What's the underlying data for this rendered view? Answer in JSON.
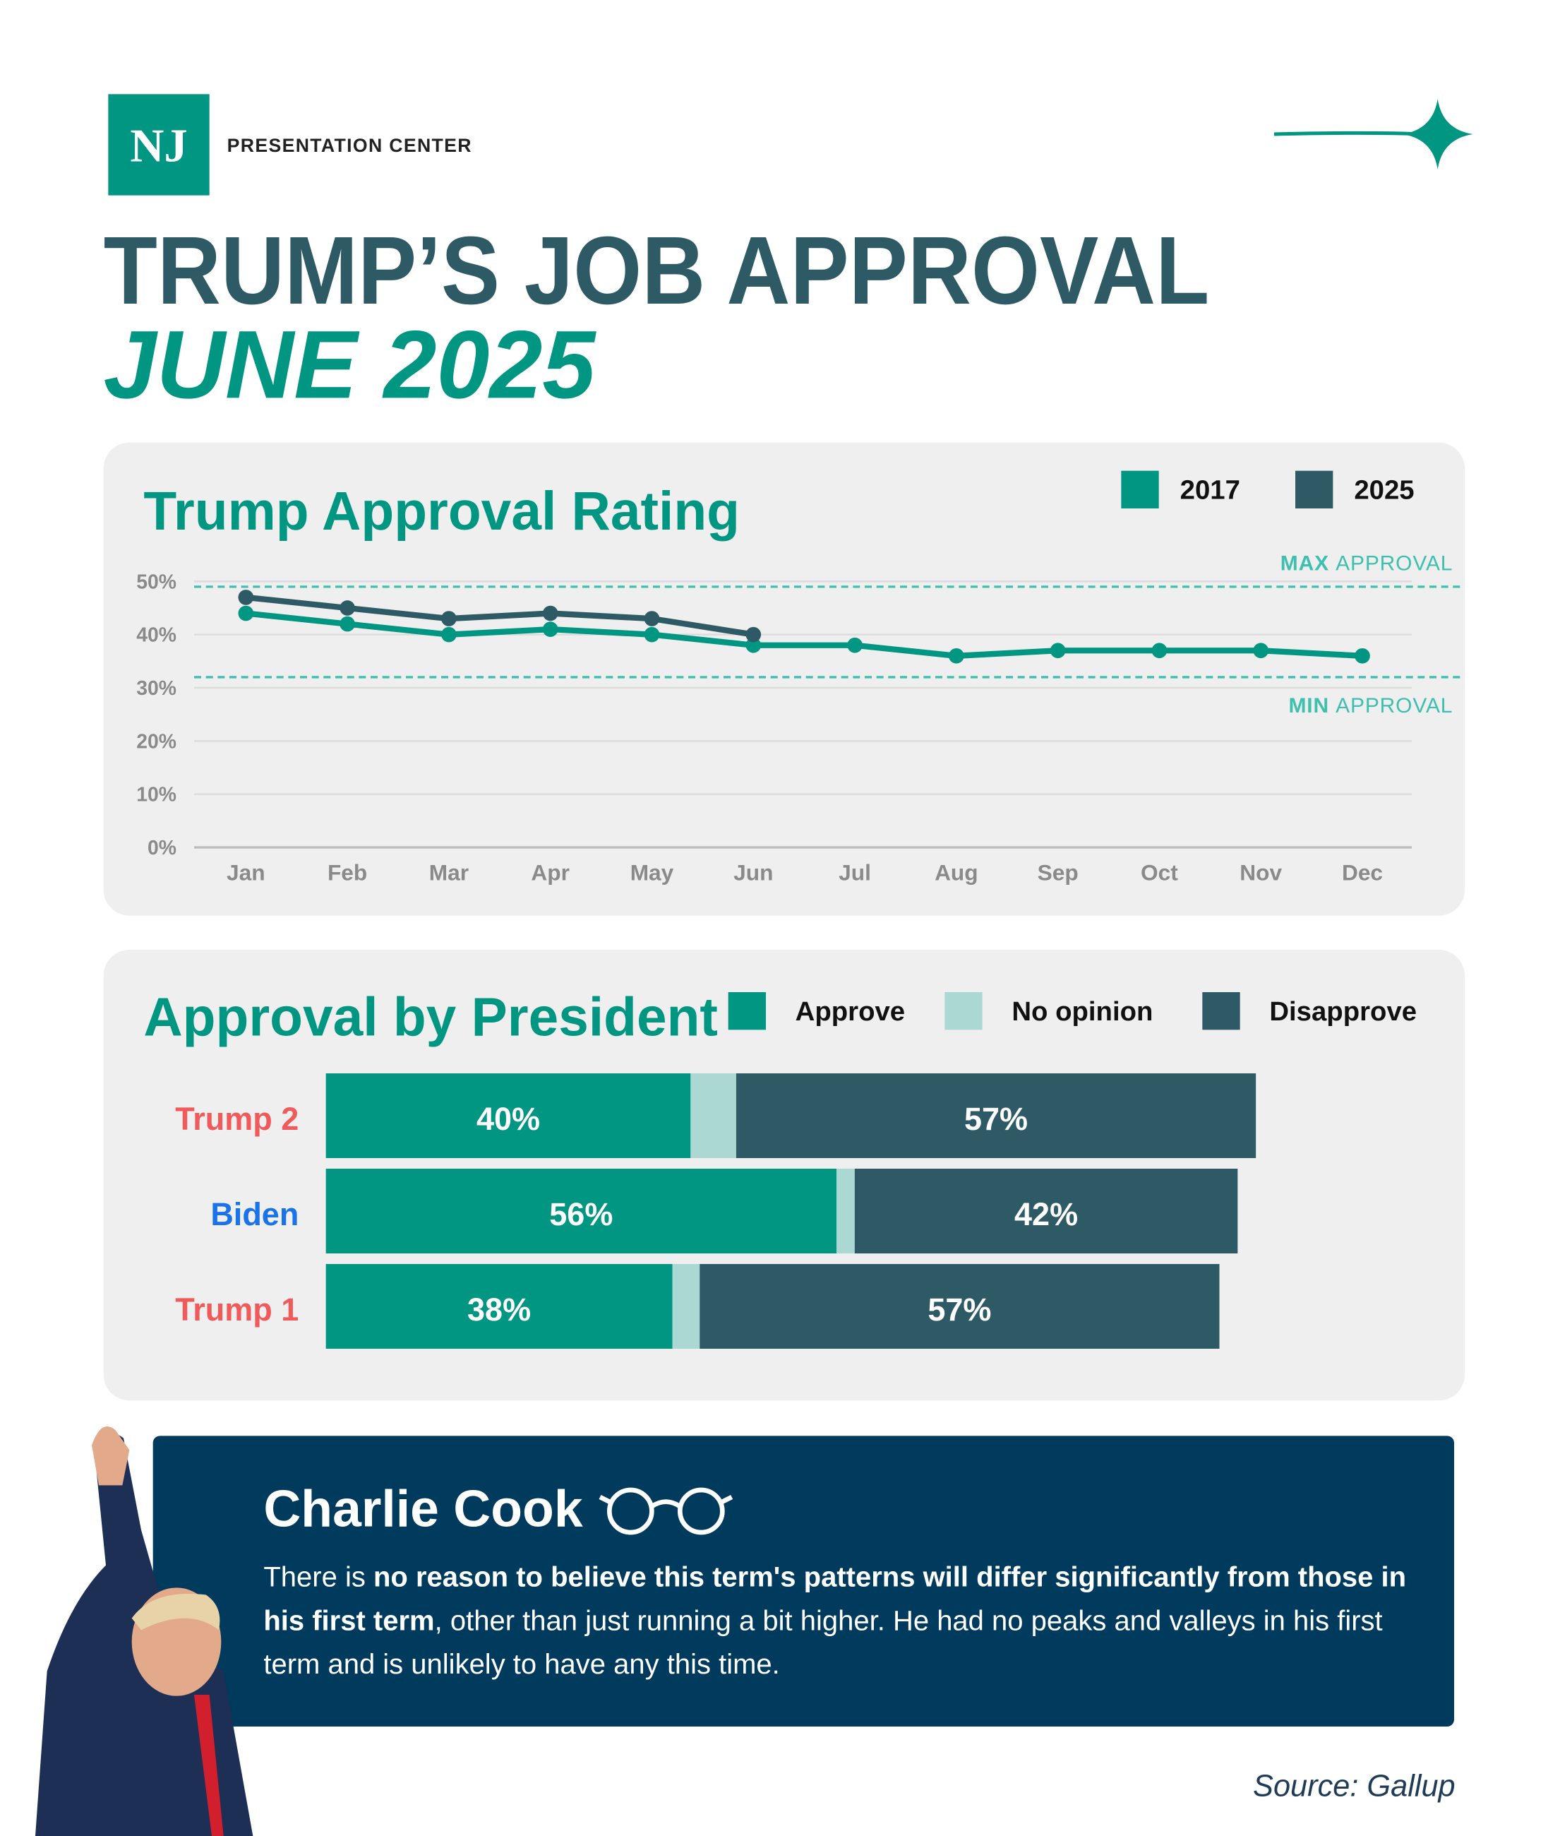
{
  "header": {
    "logo": "NJ",
    "brand": "PRESENTATION CENTER",
    "title": "TRUMP’S JOB APPROVAL",
    "subtitle": "JUNE 2025"
  },
  "chart_data": [
    {
      "type": "line",
      "title": "Trump Approval Rating",
      "categories": [
        "Jan",
        "Feb",
        "Mar",
        "Apr",
        "May",
        "Jun",
        "Jul",
        "Aug",
        "Sep",
        "Oct",
        "Nov",
        "Dec"
      ],
      "series": [
        {
          "name": "2017",
          "color": "#009682",
          "values": [
            44,
            42,
            40,
            41,
            40,
            38,
            38,
            36,
            37,
            37,
            37,
            36
          ]
        },
        {
          "name": "2025",
          "color": "#2e5a66",
          "values": [
            47,
            45,
            43,
            44,
            43,
            40,
            null,
            null,
            null,
            null,
            null,
            null
          ]
        }
      ],
      "ylim": [
        0,
        50
      ],
      "yticks": [
        {
          "value": 0,
          "label": "0%"
        },
        {
          "value": 10,
          "label": "10%"
        },
        {
          "value": 20,
          "label": "20%"
        },
        {
          "value": 30,
          "label": "30%"
        },
        {
          "value": 40,
          "label": "40%"
        },
        {
          "value": 50,
          "label": "50%"
        }
      ],
      "grid": true,
      "legend": "top-right",
      "reference_lines": [
        {
          "bold": "MAX",
          "label": "APPROVAL",
          "value": 49,
          "color": "#3fbfae"
        },
        {
          "bold": "MIN",
          "label": "APPROVAL",
          "value": 32,
          "color": "#3fbfae"
        }
      ]
    },
    {
      "type": "stacked-bar-horizontal",
      "title": "Approval by President",
      "categories": [
        "Trump 2",
        "Biden",
        "Trump 1"
      ],
      "category_colors": [
        "#f05a5a",
        "#1a73e8",
        "#f05a5a"
      ],
      "series": [
        {
          "name": "Approve",
          "color": "#009682",
          "values": [
            40,
            56,
            38
          ],
          "value_labels": [
            "40%",
            "56%",
            "38%"
          ]
        },
        {
          "name": "No opinion",
          "color": "#acd8d4",
          "values": [
            5,
            2,
            3
          ]
        },
        {
          "name": "Disapprove",
          "color": "#2e5a66",
          "values": [
            57,
            42,
            57
          ],
          "value_labels": [
            "57%",
            "42%",
            "57%"
          ]
        }
      ],
      "xlim": [
        0,
        100
      ],
      "legend": "top-right"
    }
  ],
  "quote": {
    "author": "Charlie Cook",
    "text": [
      {
        "text": "There is "
      },
      {
        "text": "no reason to believe this term's patterns will differ significantly from those in his first term",
        "bold": true
      },
      {
        "text": ", other than just running a bit higher. He had no peaks and valleys in his first term and is unlikely to have any this time."
      }
    ]
  },
  "source": "Source: Gallup"
}
